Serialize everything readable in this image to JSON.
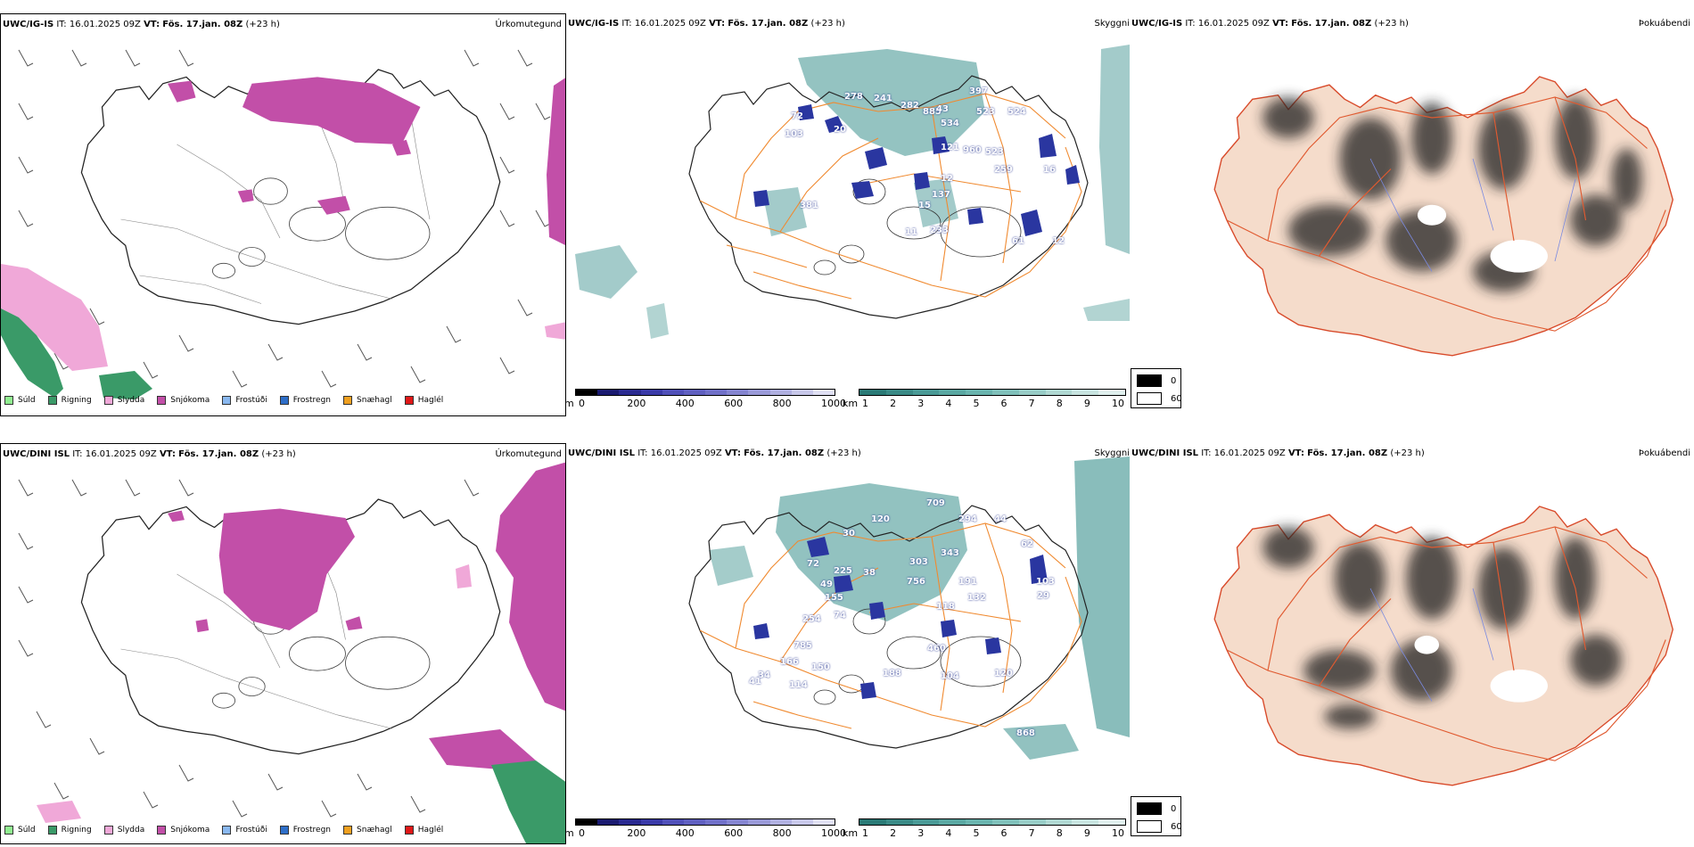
{
  "colors": {
    "precip_snow": "#c24fa8",
    "precip_rain": "#3a9a68",
    "precip_sleet": "#f0a8d8",
    "cloud_teal": "#4a9a96",
    "cloud_blue": "#2a36a0",
    "road_orange": "#f08a30",
    "land_fill": "#f5dccb",
    "fog_dark": "#202020"
  },
  "header": {
    "top_model": "UWC/IG-IS",
    "bottom_model": "UWC/DINI ISL",
    "it_label": "IT:",
    "it_value": "16.01.2025 09Z",
    "vt_label": "VT:",
    "vt_value": "Fös. 17.jan. 08Z",
    "lead": "(+23 h)"
  },
  "titles": {
    "precip_type": "Úrkomutegund",
    "visibility": "Skyggni",
    "fog": "Þokuábendi"
  },
  "precip_legend": [
    {
      "label": "Súld",
      "color": "#90ee90",
      "icon": "drizzle-swatch"
    },
    {
      "label": "Rigning",
      "color": "#3a9a68",
      "icon": "rain-swatch"
    },
    {
      "label": "Slydda",
      "color": "#f0a8d8",
      "icon": "sleet-swatch"
    },
    {
      "label": "Snjókoma",
      "color": "#c24fa8",
      "icon": "snow-swatch"
    },
    {
      "label": "Frostúði",
      "color": "#8ab8f0",
      "icon": "freezing-drizzle-swatch"
    },
    {
      "label": "Frostregn",
      "color": "#2e6ec8",
      "icon": "freezing-rain-swatch"
    },
    {
      "label": "Snæhagl",
      "color": "#f0a020",
      "icon": "snow-pellets-swatch"
    },
    {
      "label": "Haglél",
      "color": "#e01818",
      "icon": "hail-swatch"
    }
  ],
  "cloudbase_scale": {
    "unit": "m",
    "ticks": [
      "0",
      "200",
      "400",
      "600",
      "800",
      "1000"
    ],
    "colors": [
      "#000000",
      "#1a1a70",
      "#2a2a90",
      "#3a3aa8",
      "#5050b8",
      "#6060c0",
      "#7070c8",
      "#8585d0",
      "#9a9ad8",
      "#b0b0e0",
      "#c8c8ea",
      "#e0e0f4"
    ]
  },
  "visibility_scale": {
    "unit": "km",
    "ticks": [
      "1",
      "2",
      "3",
      "4",
      "5",
      "6",
      "7",
      "8",
      "9",
      "10"
    ],
    "colors": [
      "#2a7a76",
      "#3a8a86",
      "#4a9a96",
      "#5aa8a2",
      "#6ab4ae",
      "#80c0ba",
      "#98ccc6",
      "#b0d8d2",
      "#c8e4e0",
      "#e0f0ee"
    ]
  },
  "fog_scale": {
    "items": [
      {
        "label": "0",
        "color": "#000000"
      },
      {
        "label": "60",
        "color": "#ffffff"
      }
    ]
  },
  "cloud_labels_top": [
    "397",
    "278",
    "241",
    "282",
    "885",
    "43",
    "534",
    "523",
    "524",
    "72",
    "103",
    "20",
    "121",
    "960",
    "523",
    "259",
    "12",
    "137",
    "381",
    "15",
    "233",
    "11",
    "12",
    "61",
    "16"
  ],
  "cloud_labels_bottom": [
    "709",
    "120",
    "294",
    "44",
    "62",
    "30",
    "343",
    "303",
    "72",
    "225",
    "38",
    "756",
    "191",
    "103",
    "49",
    "155",
    "29",
    "132",
    "118",
    "74",
    "254",
    "785",
    "460",
    "166",
    "150",
    "120",
    "104",
    "188",
    "34",
    "114",
    "41",
    "868"
  ]
}
